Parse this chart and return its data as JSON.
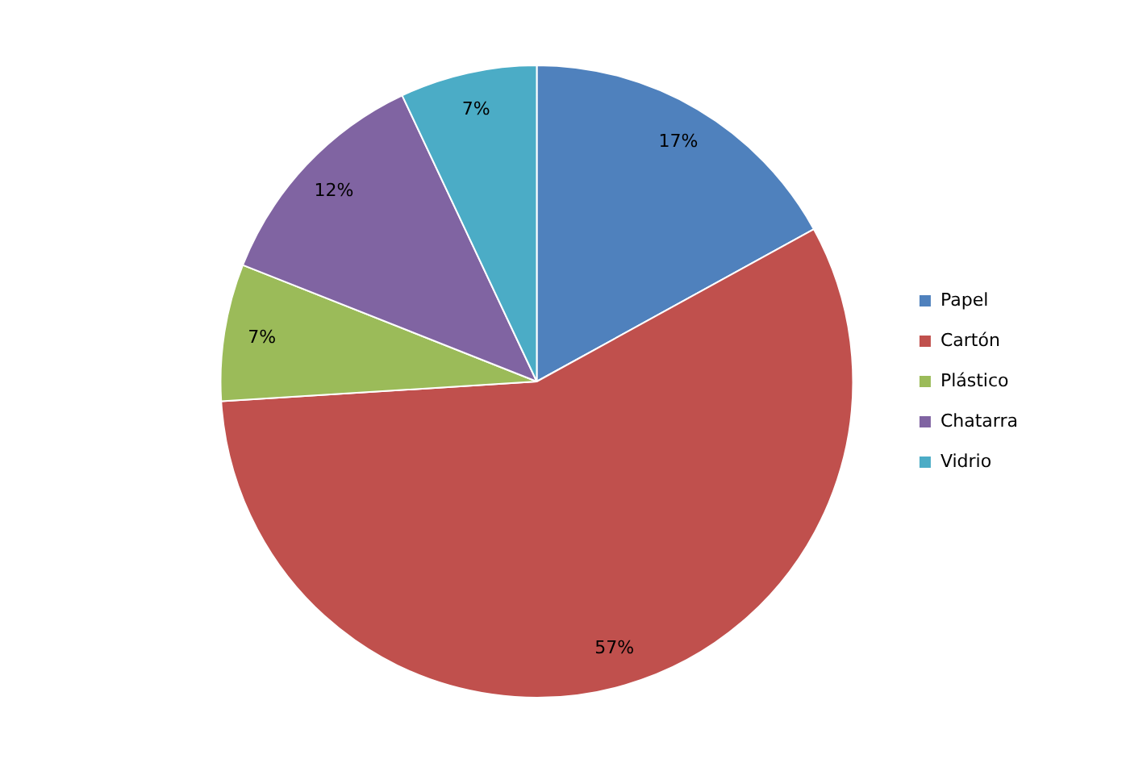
{
  "chart_data": {
    "type": "pie",
    "categories": [
      "Papel",
      "Cartón",
      "Plástico",
      "Chatarra",
      "Vidrio"
    ],
    "values": [
      17,
      57,
      7,
      12,
      7
    ],
    "colors": [
      "#4f81bd",
      "#c0504d",
      "#9bbb59",
      "#8064a2",
      "#4bacc6"
    ],
    "value_labels": [
      "17%",
      "57%",
      "7%",
      "12%",
      "7%"
    ],
    "legend": "right"
  }
}
